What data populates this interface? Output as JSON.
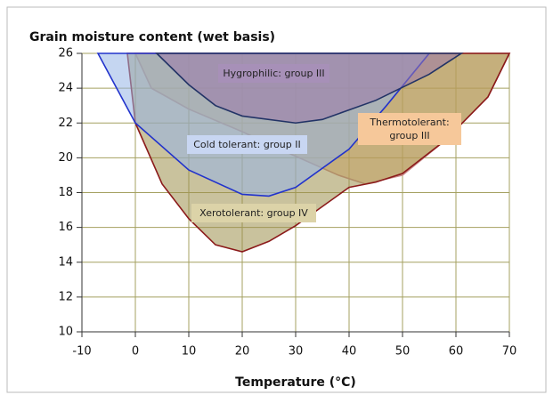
{
  "chart_data": {
    "type": "area",
    "title": "Grain moisture content (wet basis)",
    "x_label": "Temperature (°C)",
    "xlim": [
      -10,
      70
    ],
    "xticks": [
      -10,
      0,
      10,
      20,
      30,
      40,
      50,
      60,
      70
    ],
    "ylim": [
      10,
      26
    ],
    "yticks": [
      10,
      12,
      14,
      16,
      18,
      20,
      22,
      24,
      26
    ],
    "grid": true,
    "series": [
      {
        "name": "Thermotolerant: group III",
        "color": "#f0b478",
        "stroke": "#c98a8a",
        "x": [
          0,
          3,
          10,
          20,
          27,
          38,
          43,
          50,
          58,
          66,
          70
        ],
        "values": [
          26,
          24,
          22.8,
          21.5,
          20.5,
          19,
          18.5,
          19,
          21,
          23.5,
          26
        ]
      },
      {
        "name": "Xerotolerant: group IV",
        "color": "#9c8f4c",
        "stroke": "#8b1a1a",
        "x": [
          -1.5,
          0,
          5,
          10,
          15,
          20,
          25,
          30,
          35,
          40,
          45,
          50,
          58,
          66,
          70
        ],
        "values": [
          26,
          22,
          18.5,
          16.5,
          15,
          14.6,
          15.2,
          16.1,
          17.2,
          18.3,
          18.6,
          19.1,
          21,
          23.5,
          26
        ]
      },
      {
        "name": "Cold tolerant: group II",
        "color": "#96b4e6",
        "stroke": "#2233cc",
        "x": [
          -7,
          0,
          10,
          20,
          25,
          30,
          40,
          47,
          55
        ],
        "values": [
          26,
          22,
          19.3,
          17.9,
          17.8,
          18.3,
          20.5,
          23,
          26
        ]
      },
      {
        "name": "Hygrophilic: group III",
        "color": "#9a78aa",
        "stroke": "#223366",
        "x": [
          4,
          10,
          15,
          20,
          30,
          35,
          45,
          55,
          61
        ],
        "values": [
          26,
          24.2,
          23,
          22.4,
          22,
          22.2,
          23.3,
          24.8,
          26
        ]
      }
    ]
  }
}
